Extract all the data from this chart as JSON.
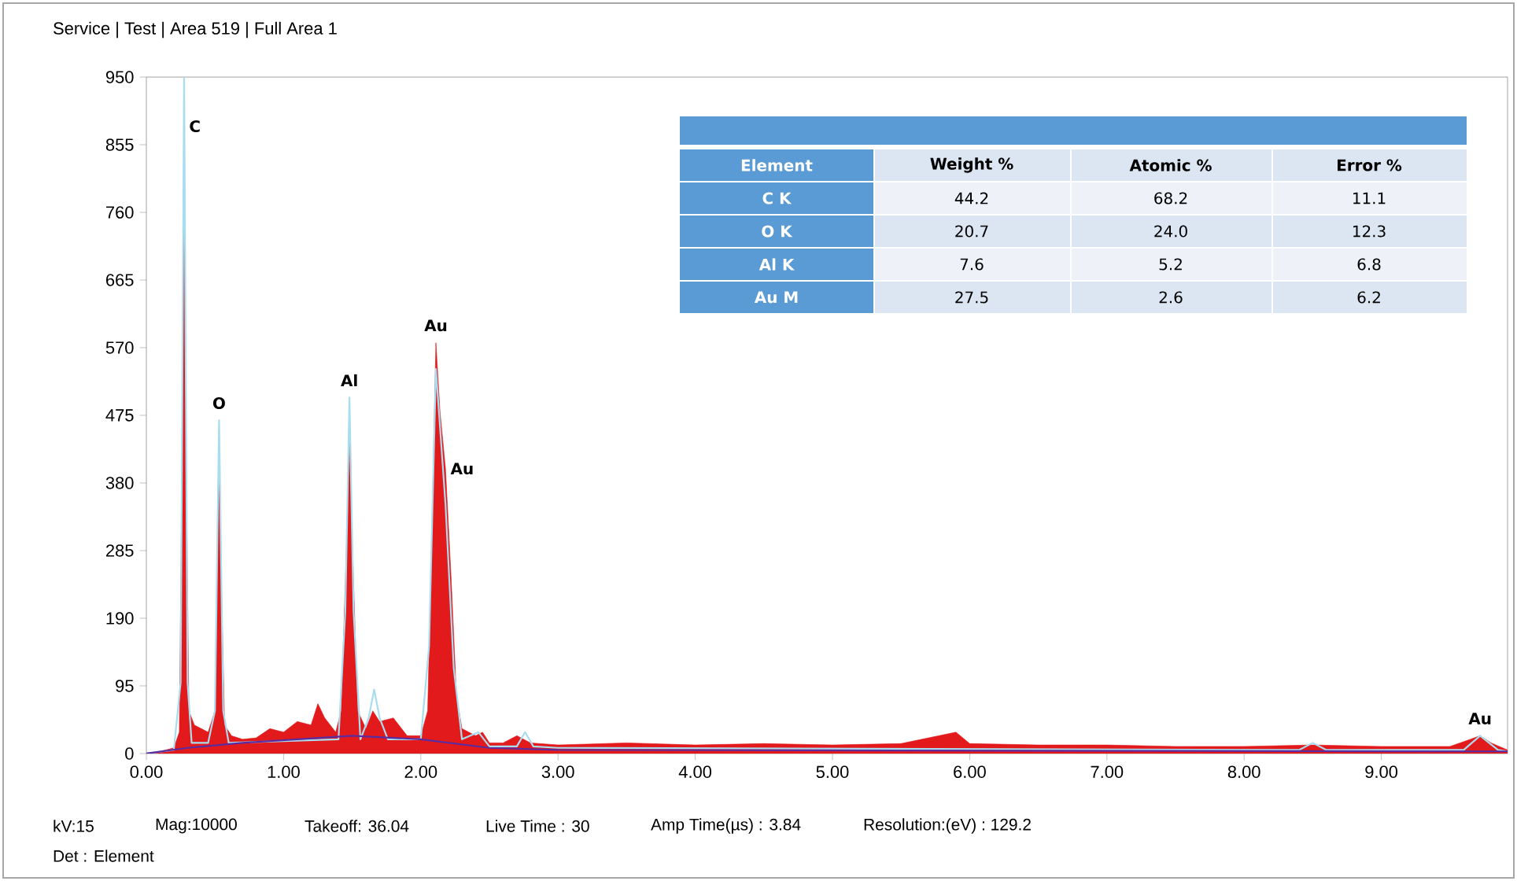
{
  "chart_data": {
    "type": "area",
    "title": "Service | Test | Area 519 | Full Area 1",
    "xlim": [
      0,
      9.92
    ],
    "ylim": [
      0,
      950
    ],
    "xticks": [
      {
        "value": 0,
        "label": "0.00"
      },
      {
        "value": 1,
        "label": "1.00"
      },
      {
        "value": 2,
        "label": "2.00"
      },
      {
        "value": 3,
        "label": "3.00"
      },
      {
        "value": 4,
        "label": "4.00"
      },
      {
        "value": 5,
        "label": "5.00"
      },
      {
        "value": 6,
        "label": "6.00"
      },
      {
        "value": 7,
        "label": "7.00"
      },
      {
        "value": 8,
        "label": "8.00"
      },
      {
        "value": 9,
        "label": "9.00"
      }
    ],
    "yticks": [
      0,
      95,
      190,
      285,
      380,
      475,
      570,
      665,
      760,
      855,
      950
    ],
    "series": [
      {
        "color": "#e31a1c",
        "x": [
          0,
          0.1,
          0.2,
          0.24,
          0.26,
          0.275,
          0.29,
          0.31,
          0.35,
          0.4,
          0.45,
          0.5,
          0.52,
          0.53,
          0.545,
          0.57,
          0.62,
          0.7,
          0.8,
          0.9,
          1.0,
          1.1,
          1.2,
          1.25,
          1.3,
          1.38,
          1.42,
          1.46,
          1.48,
          1.5,
          1.54,
          1.6,
          1.65,
          1.7,
          1.8,
          1.9,
          2.0,
          2.05,
          2.08,
          2.11,
          2.14,
          2.18,
          2.22,
          2.26,
          2.3,
          2.4,
          2.45,
          2.5,
          2.6,
          2.7,
          2.8,
          3.0,
          3.5,
          4.0,
          4.5,
          5.0,
          5.5,
          5.9,
          6.0,
          6.5,
          7.0,
          7.5,
          8.0,
          8.5,
          9.0,
          9.5,
          9.65,
          9.72,
          9.8,
          9.92
        ],
        "values": [
          0,
          3,
          8,
          30,
          400,
          870,
          400,
          60,
          40,
          35,
          30,
          60,
          300,
          400,
          250,
          40,
          25,
          20,
          22,
          35,
          30,
          45,
          40,
          70,
          50,
          30,
          60,
          300,
          440,
          300,
          60,
          35,
          60,
          45,
          50,
          25,
          25,
          60,
          300,
          577,
          480,
          400,
          250,
          80,
          35,
          25,
          30,
          15,
          15,
          25,
          15,
          12,
          15,
          12,
          14,
          12,
          14,
          30,
          14,
          12,
          12,
          10,
          10,
          12,
          10,
          10,
          20,
          25,
          15,
          5
        ]
      },
      {
        "type": "line",
        "color": "#a8dcef",
        "x": [
          0,
          0.2,
          0.25,
          0.275,
          0.3,
          0.33,
          0.45,
          0.5,
          0.53,
          0.56,
          0.6,
          1.4,
          1.45,
          1.48,
          1.51,
          1.56,
          1.62,
          1.66,
          1.7,
          1.76,
          2.0,
          2.06,
          2.11,
          2.18,
          2.24,
          2.3,
          2.42,
          2.5,
          2.7,
          2.76,
          2.82,
          3.0,
          8.4,
          8.5,
          8.6,
          9.6,
          9.72,
          9.85,
          9.92
        ],
        "values": [
          0,
          5,
          100,
          950,
          100,
          15,
          15,
          60,
          468,
          60,
          15,
          20,
          200,
          500,
          200,
          20,
          50,
          90,
          50,
          20,
          20,
          150,
          540,
          350,
          120,
          20,
          30,
          10,
          10,
          30,
          10,
          8,
          5,
          15,
          5,
          5,
          25,
          5,
          3
        ]
      },
      {
        "type": "line",
        "color": "#5b2c9f",
        "x": [
          0,
          0.3,
          0.7,
          1.5,
          2.0,
          2.5,
          3.0,
          9.92
        ],
        "values": [
          0,
          8,
          15,
          25,
          20,
          8,
          5,
          3
        ]
      }
    ],
    "annotations": [
      {
        "text": "C",
        "x": 0.275,
        "y": 870
      },
      {
        "text": "O",
        "x": 0.53,
        "y": 468
      },
      {
        "text": "Al",
        "x": 1.48,
        "y": 500
      },
      {
        "text": "Au",
        "x": 2.11,
        "y": 577
      },
      {
        "text": "Au",
        "x": 2.18,
        "y": 400
      },
      {
        "text": "Au",
        "x": 9.72,
        "y": 25
      },
      "kV:15",
      "Mag:10000",
      "Takeoff: 36.04",
      "Live Time : 30",
      "Amp Time(µs) : 3.84",
      "Resolution:(eV) : 129.2",
      "Det : Element",
      "Element",
      "Weight %",
      "Atomic %",
      "Error %",
      "C K",
      "44.2",
      "68.2",
      "11.1",
      "O K",
      "20.7",
      "24.0",
      "12.3",
      "Al K",
      "7.6",
      "5.2",
      "6.8",
      "Au M",
      "27.5",
      "2.6",
      "6.2"
    ]
  }
}
